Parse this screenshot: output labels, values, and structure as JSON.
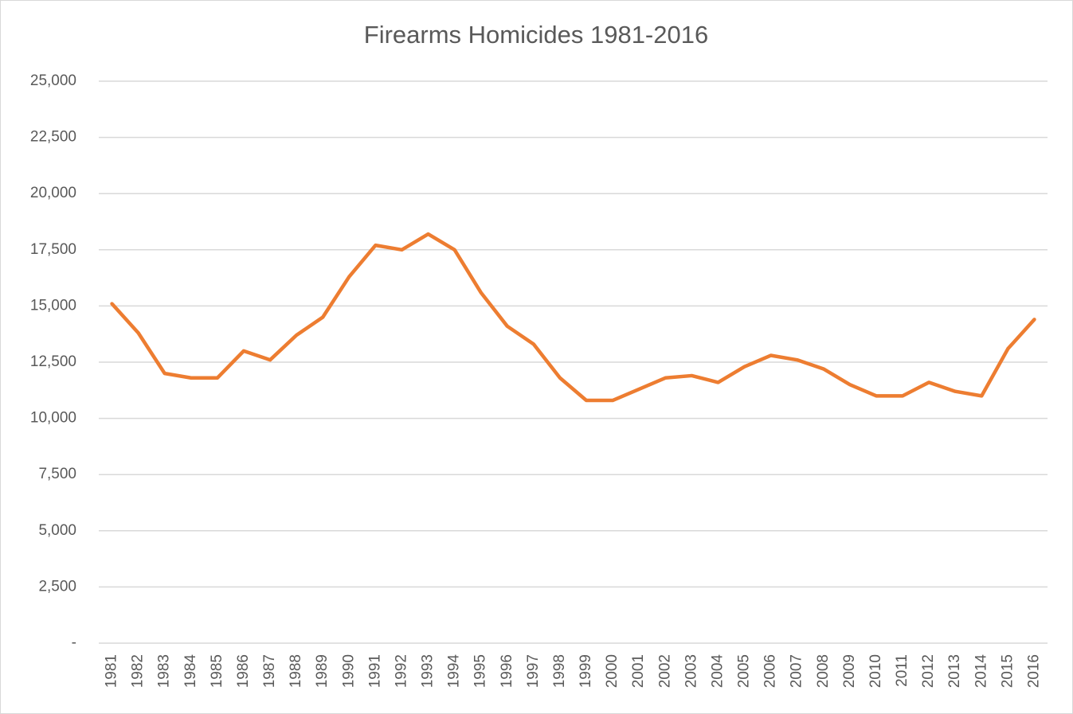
{
  "chart_data": {
    "type": "line",
    "title": "Firearms Homicides 1981-2016",
    "categories": [
      "1981",
      "1982",
      "1983",
      "1984",
      "1985",
      "1986",
      "1987",
      "1988",
      "1989",
      "1990",
      "1991",
      "1992",
      "1993",
      "1994",
      "1995",
      "1996",
      "1997",
      "1998",
      "1999",
      "2000",
      "2001",
      "2002",
      "2003",
      "2004",
      "2005",
      "2006",
      "2007",
      "2008",
      "2009",
      "2010",
      "2011",
      "2012",
      "2013",
      "2014",
      "2015",
      "2016"
    ],
    "series": [
      {
        "name": "Firearms Homicides",
        "color": "#ed7d31",
        "values": [
          15100,
          13800,
          12000,
          11800,
          11800,
          13000,
          12600,
          13700,
          14500,
          16300,
          17700,
          17500,
          18200,
          17500,
          15600,
          14100,
          13300,
          11800,
          10800,
          10800,
          11300,
          11800,
          11900,
          11600,
          12300,
          12800,
          12600,
          12200,
          11500,
          11000,
          11000,
          11600,
          11200,
          11000,
          13100,
          14400
        ]
      }
    ],
    "ylim": [
      0,
      25000
    ],
    "yticks": [
      {
        "value": 0,
        "label": "-"
      },
      {
        "value": 2500,
        "label": "2,500"
      },
      {
        "value": 5000,
        "label": "5,000"
      },
      {
        "value": 7500,
        "label": "7,500"
      },
      {
        "value": 10000,
        "label": "10,000"
      },
      {
        "value": 12500,
        "label": "12,500"
      },
      {
        "value": 15000,
        "label": "15,000"
      },
      {
        "value": 17500,
        "label": "17,500"
      },
      {
        "value": 20000,
        "label": "20,000"
      },
      {
        "value": 22500,
        "label": "22,500"
      },
      {
        "value": 25000,
        "label": "25,000"
      }
    ],
    "grid": true
  }
}
